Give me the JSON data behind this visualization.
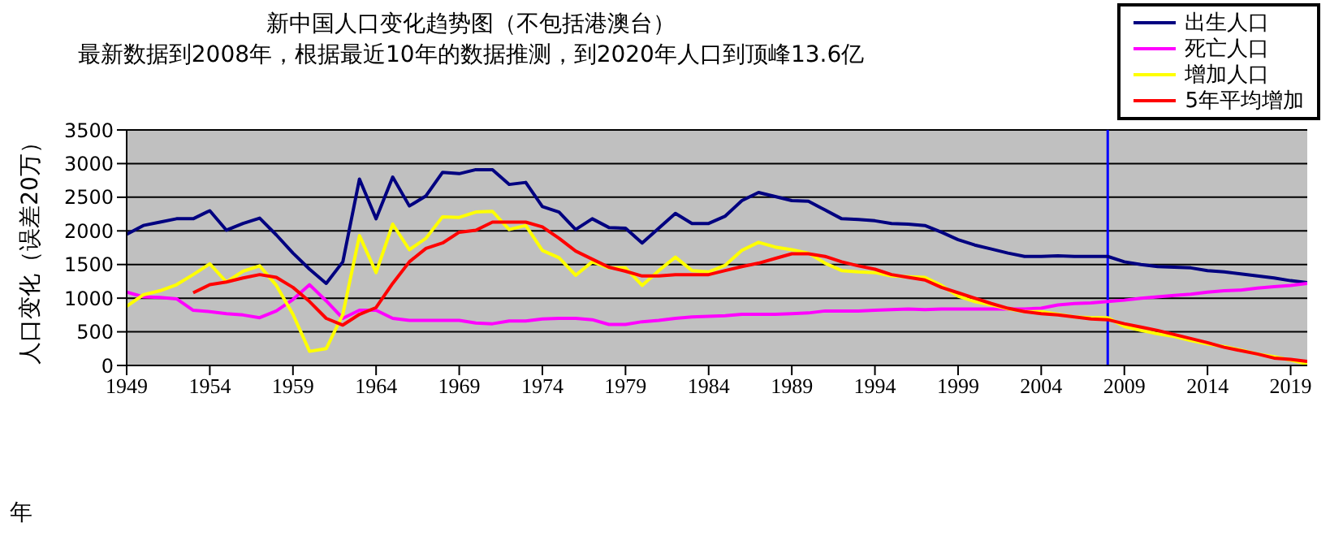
{
  "chart_data": {
    "type": "line",
    "title": "新中国人口变化趋势图（不包括港澳台）",
    "subtitle": "最新数据到2008年，根据最近10年的数据推测，到2020年人口到顶峰13.6亿",
    "xlabel": "年",
    "ylabel": "人口变化（误差20万）",
    "x": [
      1949,
      1950,
      1951,
      1952,
      1953,
      1954,
      1955,
      1956,
      1957,
      1958,
      1959,
      1960,
      1961,
      1962,
      1963,
      1964,
      1965,
      1966,
      1967,
      1968,
      1969,
      1970,
      1971,
      1972,
      1973,
      1974,
      1975,
      1976,
      1977,
      1978,
      1979,
      1980,
      1981,
      1982,
      1983,
      1984,
      1985,
      1986,
      1987,
      1988,
      1989,
      1990,
      1991,
      1992,
      1993,
      1994,
      1995,
      1996,
      1997,
      1998,
      1999,
      2000,
      2001,
      2002,
      2003,
      2004,
      2005,
      2006,
      2007,
      2008,
      2009,
      2010,
      2011,
      2012,
      2013,
      2014,
      2015,
      2016,
      2017,
      2018,
      2019,
      2020
    ],
    "series": [
      {
        "name": "出生人口",
        "color": "#000080",
        "values": [
          1950,
          2080,
          2130,
          2180,
          2180,
          2300,
          2010,
          2110,
          2190,
          1940,
          1670,
          1430,
          1220,
          1540,
          2770,
          2180,
          2800,
          2370,
          2520,
          2870,
          2850,
          2910,
          2910,
          2690,
          2720,
          2360,
          2280,
          2020,
          2180,
          2050,
          2040,
          1820,
          2040,
          2260,
          2110,
          2110,
          2220,
          2450,
          2570,
          2510,
          2450,
          2440,
          2310,
          2180,
          2170,
          2150,
          2110,
          2100,
          2080,
          1980,
          1870,
          1790,
          1730,
          1670,
          1620,
          1620,
          1630,
          1620,
          1620,
          1620,
          1540,
          1500,
          1470,
          1460,
          1450,
          1410,
          1390,
          1360,
          1330,
          1300,
          1260,
          1230
        ]
      },
      {
        "name": "死亡人口",
        "color": "#ff00ff",
        "values": [
          1090,
          1020,
          1010,
          990,
          820,
          800,
          770,
          750,
          710,
          810,
          980,
          1200,
          960,
          700,
          820,
          820,
          700,
          670,
          670,
          670,
          670,
          630,
          620,
          660,
          660,
          690,
          700,
          700,
          680,
          610,
          610,
          650,
          670,
          700,
          720,
          730,
          740,
          760,
          760,
          760,
          770,
          780,
          810,
          810,
          810,
          820,
          830,
          840,
          830,
          840,
          840,
          840,
          840,
          840,
          840,
          850,
          900,
          920,
          930,
          950,
          970,
          1000,
          1020,
          1040,
          1060,
          1090,
          1110,
          1120,
          1150,
          1170,
          1190,
          1220
        ]
      },
      {
        "name": "增加人口",
        "color": "#ffff00",
        "values": [
          880,
          1050,
          1110,
          1200,
          1350,
          1510,
          1240,
          1400,
          1480,
          1190,
          760,
          210,
          250,
          760,
          1930,
          1380,
          2100,
          1720,
          1890,
          2210,
          2200,
          2280,
          2290,
          2020,
          2080,
          1710,
          1600,
          1340,
          1540,
          1450,
          1450,
          1190,
          1410,
          1610,
          1410,
          1390,
          1490,
          1710,
          1830,
          1760,
          1720,
          1670,
          1520,
          1410,
          1390,
          1380,
          1330,
          1320,
          1310,
          1190,
          1030,
          950,
          900,
          840,
          800,
          800,
          760,
          720,
          710,
          710,
          580,
          520,
          470,
          430,
          370,
          320,
          280,
          230,
          170,
          130,
          80,
          20
        ]
      },
      {
        "name": "5年平均增加",
        "color": "#ff0000",
        "values": [
          null,
          null,
          null,
          null,
          1080,
          1200,
          1240,
          1300,
          1350,
          1310,
          1160,
          950,
          700,
          600,
          760,
          860,
          1220,
          1540,
          1740,
          1820,
          1980,
          2010,
          2130,
          2130,
          2130,
          2060,
          1890,
          1700,
          1580,
          1460,
          1400,
          1330,
          1330,
          1350,
          1350,
          1350,
          1410,
          1470,
          1520,
          1590,
          1660,
          1660,
          1620,
          1540,
          1480,
          1430,
          1350,
          1310,
          1270,
          1160,
          1080,
          1000,
          920,
          850,
          800,
          770,
          750,
          720,
          690,
          680,
          620,
          570,
          520,
          460,
          400,
          340,
          270,
          220,
          170,
          110,
          90,
          60
        ]
      }
    ],
    "xlim": [
      1949,
      2020
    ],
    "xticks": [
      1949,
      1954,
      1959,
      1964,
      1969,
      1974,
      1979,
      1984,
      1989,
      1994,
      1999,
      2004,
      2009,
      2014,
      2019
    ],
    "ylim": [
      0,
      3500
    ],
    "yticks": [
      0,
      500,
      1000,
      1500,
      2000,
      2500,
      3000,
      3500
    ],
    "ref_lines": [
      {
        "axis": "x",
        "value": 2008,
        "color": "#0000ff"
      }
    ],
    "grid": "y",
    "legend": "top right",
    "marker": "none",
    "line_style": "solid"
  }
}
